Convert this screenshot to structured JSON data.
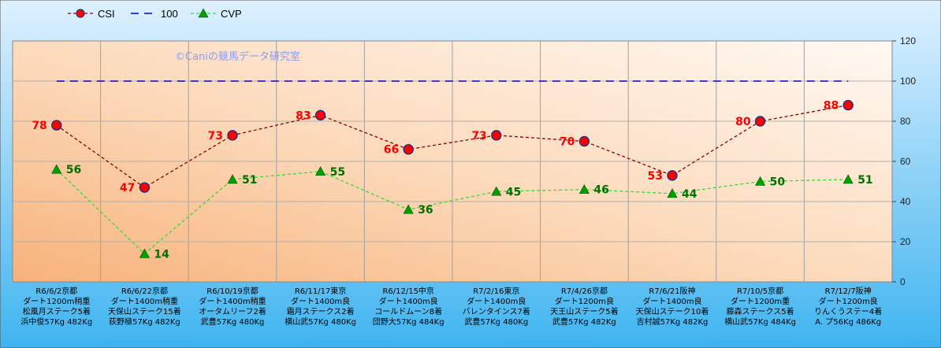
{
  "chart_data": {
    "type": "line",
    "title": "",
    "watermark": "©Caniの競馬データ研究室",
    "categories": [
      [
        "R6/6/2京都",
        "ダート1200m稍重",
        "松風月ステーク5着",
        "浜中俊57Kg 482Kg"
      ],
      [
        "R6/6/22京都",
        "ダート1400m稍重",
        "天保山ステーク15着",
        "荻野極57Kg 482Kg"
      ],
      [
        "R6/10/19京都",
        "ダート1400m稍重",
        "オータムリーフ2着",
        "武豊57Kg 480Kg"
      ],
      [
        "R6/11/17東京",
        "ダート1400m良",
        "霜月ステークス2着",
        "横山武57Kg 480Kg"
      ],
      [
        "R6/12/15中京",
        "ダート1400m良",
        "コールドムーン8着",
        "団野大57Kg 484Kg"
      ],
      [
        "R7/2/16東京",
        "ダート1400m良",
        "バレンタインス7着",
        "武豊57Kg 480Kg"
      ],
      [
        "R7/4/26京都",
        "ダート1200m良",
        "天王山ステーク5着",
        "武豊57Kg 482Kg"
      ],
      [
        "R7/6/21阪神",
        "ダート1400m良",
        "天保山ステーク10着",
        "吉村誠57Kg 482Kg"
      ],
      [
        "R7/10/5京都",
        "ダート1200m重",
        "藤森ステークス5着",
        "横山武57Kg 484Kg"
      ],
      [
        "R7/12/7阪神",
        "ダート1200m良",
        "りんくうステー4着",
        "A. プ56Kg 486Kg"
      ]
    ],
    "series": [
      {
        "name": "CSI",
        "values": [
          78,
          47,
          73,
          83,
          66,
          73,
          70,
          53,
          80,
          88
        ],
        "color": "#8b0000",
        "marker_color": "#ff0000",
        "label_color": "#ff0000"
      },
      {
        "name": "100",
        "values": [
          100,
          100,
          100,
          100,
          100,
          100,
          100,
          100,
          100,
          100
        ],
        "color": "#0000cc"
      },
      {
        "name": "CVP",
        "values": [
          56,
          14,
          51,
          55,
          36,
          45,
          46,
          44,
          50,
          51
        ],
        "color": "#33dd33",
        "marker_color": "#00a000",
        "label_color": "#007000"
      }
    ],
    "ylim": [
      0,
      120
    ],
    "yticks": [
      0,
      20,
      40,
      60,
      80,
      100,
      120
    ],
    "y_axis_side": "right",
    "grid": true,
    "legend_placement": "top-left"
  }
}
